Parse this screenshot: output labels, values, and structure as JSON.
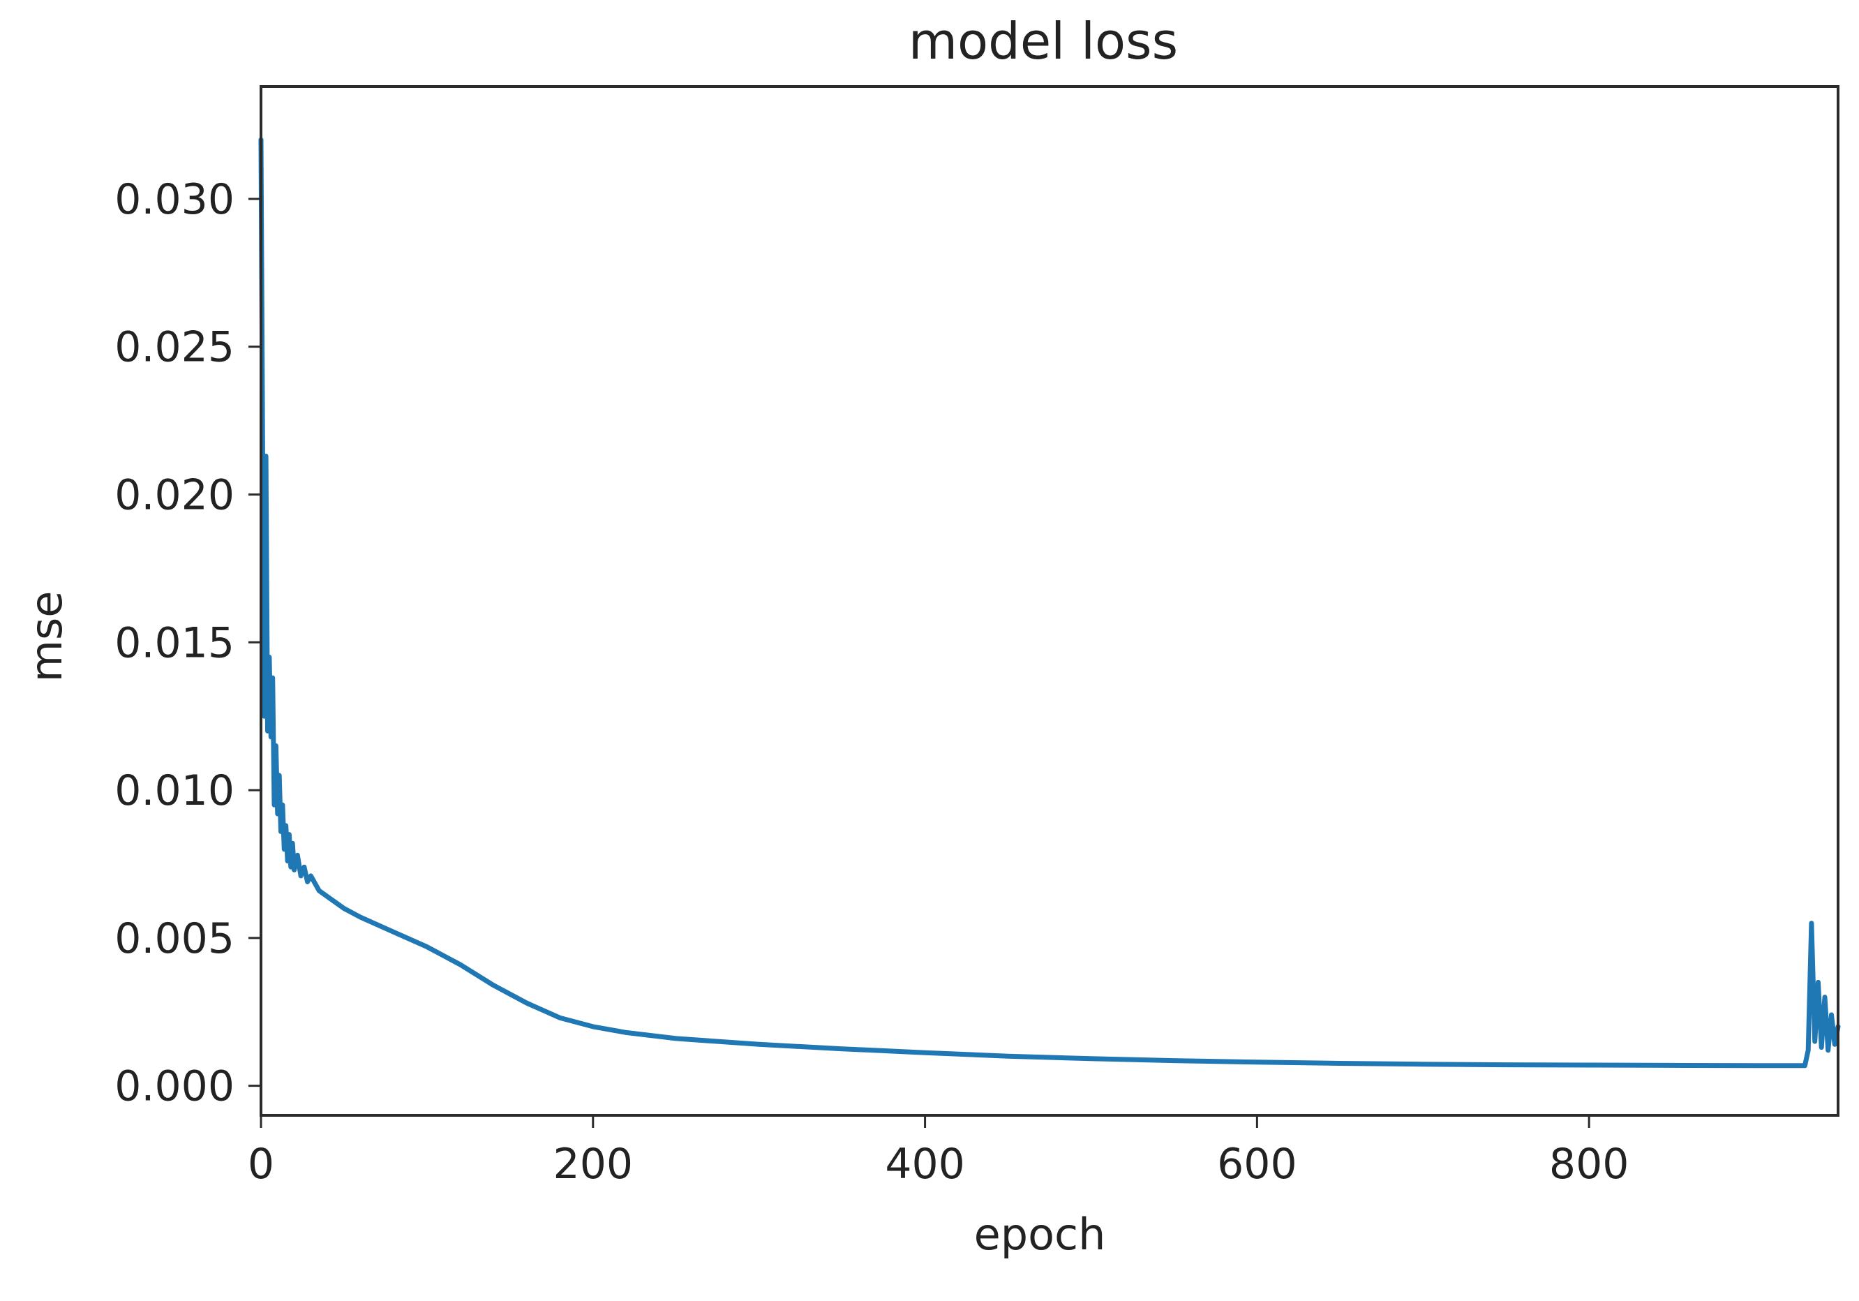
{
  "chart_data": {
    "type": "line",
    "title": "model loss",
    "xlabel": "epoch",
    "ylabel": "mse",
    "xlim": [
      0,
      950
    ],
    "ylim": [
      -0.001,
      0.0338
    ],
    "xticks": [
      0,
      200,
      400,
      600,
      800
    ],
    "xtick_labels": [
      "0",
      "200",
      "400",
      "600",
      "800"
    ],
    "yticks": [
      0.0,
      0.005,
      0.01,
      0.015,
      0.02,
      0.025,
      0.03
    ],
    "ytick_labels": [
      "0.000",
      "0.005",
      "0.010",
      "0.015",
      "0.020",
      "0.025",
      "0.030"
    ],
    "grid": false,
    "legend": "none",
    "series": [
      {
        "color": "#1f77b4",
        "x": [
          0,
          1,
          2,
          3,
          4,
          5,
          6,
          7,
          8,
          9,
          10,
          11,
          12,
          13,
          14,
          15,
          16,
          17,
          18,
          19,
          20,
          22,
          24,
          26,
          28,
          30,
          35,
          40,
          50,
          60,
          80,
          100,
          120,
          140,
          160,
          180,
          200,
          220,
          250,
          300,
          350,
          400,
          450,
          500,
          550,
          600,
          650,
          700,
          750,
          800,
          850,
          900,
          930,
          932,
          934,
          936,
          938,
          940,
          942,
          944,
          946,
          948,
          950
        ],
        "y": [
          0.032,
          0.0215,
          0.0125,
          0.0213,
          0.012,
          0.0145,
          0.0118,
          0.0138,
          0.0095,
          0.0115,
          0.0092,
          0.0105,
          0.0086,
          0.0095,
          0.008,
          0.0088,
          0.0076,
          0.0085,
          0.0074,
          0.0082,
          0.0073,
          0.0078,
          0.0071,
          0.0074,
          0.0069,
          0.0071,
          0.0066,
          0.0064,
          0.006,
          0.0057,
          0.0052,
          0.0047,
          0.0041,
          0.0034,
          0.0028,
          0.0023,
          0.002,
          0.0018,
          0.0016,
          0.0014,
          0.00125,
          0.00112,
          0.001,
          0.00092,
          0.00085,
          0.0008,
          0.00076,
          0.00073,
          0.00071,
          0.0007,
          0.00069,
          0.00068,
          0.00068,
          0.0012,
          0.0055,
          0.0015,
          0.0035,
          0.0013,
          0.003,
          0.0012,
          0.0024,
          0.0014,
          0.002
        ]
      }
    ]
  }
}
